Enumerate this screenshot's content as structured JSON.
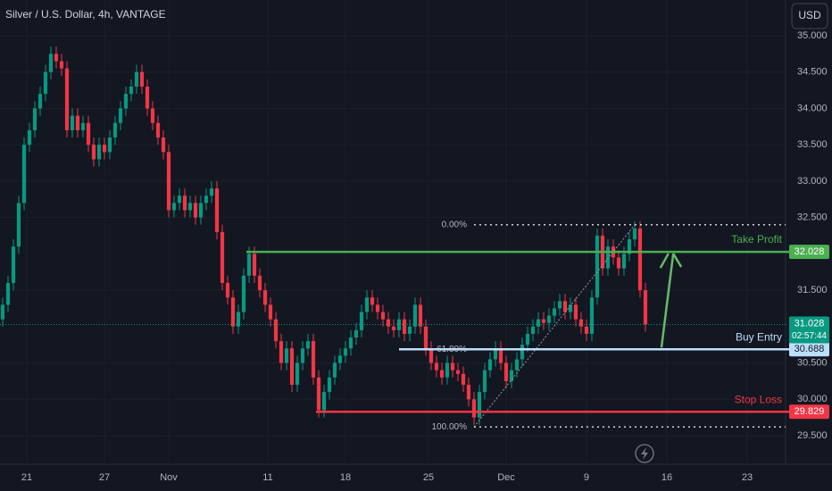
{
  "chart_data": {
    "type": "candlestick",
    "title": "Silver / U.S. Dollar, 4h, VANTAGE",
    "currency": "USD",
    "up_color": "#089981",
    "down_color": "#f23645",
    "open": [
      31.1,
      31.3,
      31.6,
      32.1,
      32.7,
      33.5,
      33.7,
      34.0,
      34.2,
      34.5,
      34.75,
      34.65,
      34.55,
      33.7,
      33.9,
      33.7,
      33.8,
      33.5,
      33.3,
      33.5,
      33.4,
      33.6,
      33.8,
      34.0,
      34.2,
      34.3,
      34.5,
      34.3,
      34.0,
      33.8,
      33.6,
      33.4,
      32.6,
      32.7,
      32.8,
      32.6,
      32.7,
      32.5,
      32.7,
      32.8,
      32.9,
      32.3,
      31.6,
      31.4,
      31.0,
      31.2,
      31.7,
      32.0,
      31.7,
      31.5,
      31.3,
      31.1,
      30.8,
      30.5,
      30.7,
      30.2,
      30.5,
      30.7,
      30.8,
      30.3,
      29.85,
      30.1,
      30.3,
      30.5,
      30.6,
      30.7,
      30.85,
      30.95,
      31.2,
      31.4,
      31.3,
      31.2,
      31.1,
      31.0,
      30.95,
      31.1,
      30.9,
      31.0,
      31.3,
      31.0,
      30.7,
      30.5,
      30.4,
      30.3,
      30.5,
      30.4,
      30.35,
      30.2,
      30.0,
      29.75,
      30.1,
      30.4,
      30.55,
      30.7,
      30.5,
      30.25,
      30.4,
      30.55,
      30.75,
      30.9,
      31.0,
      31.1,
      31.05,
      31.15,
      31.25,
      31.35,
      31.2,
      31.3,
      31.1,
      31.0,
      30.9,
      31.4,
      32.25,
      31.8,
      32.1,
      31.95,
      31.8,
      32.0,
      32.2,
      32.35,
      31.5
    ],
    "high": [
      31.4,
      31.7,
      32.2,
      32.8,
      33.6,
      33.8,
      34.1,
      34.3,
      34.6,
      34.85,
      34.85,
      34.75,
      34.65,
      34.0,
      34.0,
      33.9,
      33.9,
      33.6,
      33.6,
      33.6,
      33.7,
      33.9,
      34.1,
      34.3,
      34.4,
      34.6,
      34.6,
      34.4,
      34.1,
      33.9,
      33.7,
      33.5,
      32.8,
      32.9,
      32.9,
      32.8,
      32.8,
      32.8,
      32.9,
      33.0,
      33.0,
      32.4,
      31.7,
      31.5,
      31.3,
      31.8,
      32.1,
      32.1,
      31.8,
      31.6,
      31.4,
      31.2,
      30.9,
      30.8,
      30.8,
      30.6,
      30.8,
      30.9,
      30.9,
      30.4,
      30.2,
      30.4,
      30.6,
      30.7,
      30.8,
      30.95,
      31.05,
      31.3,
      31.5,
      31.5,
      31.4,
      31.3,
      31.2,
      31.1,
      31.2,
      31.2,
      31.1,
      31.4,
      31.4,
      31.1,
      30.8,
      30.6,
      30.5,
      30.6,
      30.6,
      30.5,
      30.45,
      30.3,
      30.1,
      30.2,
      30.5,
      30.65,
      30.8,
      30.8,
      30.6,
      30.5,
      30.65,
      30.85,
      31.0,
      31.1,
      31.2,
      31.2,
      31.25,
      31.35,
      31.45,
      31.45,
      31.4,
      31.4,
      31.2,
      31.1,
      31.5,
      32.35,
      32.35,
      32.2,
      32.2,
      32.05,
      32.1,
      32.3,
      32.45,
      32.45,
      31.6
    ],
    "low": [
      31.0,
      31.2,
      31.5,
      32.0,
      32.6,
      33.4,
      33.6,
      33.9,
      34.1,
      34.4,
      34.55,
      34.45,
      33.6,
      33.6,
      33.6,
      33.6,
      33.4,
      33.2,
      33.2,
      33.3,
      33.3,
      33.5,
      33.7,
      33.9,
      34.1,
      34.2,
      34.2,
      33.9,
      33.7,
      33.5,
      33.3,
      32.5,
      32.5,
      32.6,
      32.5,
      32.5,
      32.4,
      32.4,
      32.6,
      32.7,
      32.2,
      31.5,
      31.3,
      30.9,
      30.9,
      31.1,
      31.6,
      31.6,
      31.4,
      31.2,
      31.0,
      30.7,
      30.4,
      30.4,
      30.1,
      30.1,
      30.4,
      30.6,
      30.2,
      29.75,
      29.75,
      30.0,
      30.2,
      30.4,
      30.5,
      30.6,
      30.75,
      30.85,
      31.1,
      31.2,
      31.1,
      31.0,
      30.9,
      30.85,
      30.85,
      30.8,
      30.8,
      30.9,
      30.9,
      30.6,
      30.4,
      30.3,
      30.2,
      30.2,
      30.3,
      30.25,
      30.1,
      29.9,
      29.65,
      29.65,
      30.0,
      30.3,
      30.45,
      30.4,
      30.15,
      30.15,
      30.3,
      30.45,
      30.65,
      30.8,
      30.9,
      30.95,
      30.95,
      31.05,
      31.15,
      31.1,
      31.1,
      31.0,
      30.9,
      30.8,
      30.8,
      31.3,
      31.7,
      31.7,
      31.85,
      31.7,
      31.7,
      31.9,
      32.1,
      31.4,
      30.93
    ],
    "close": [
      31.3,
      31.6,
      32.1,
      32.7,
      33.5,
      33.7,
      34.0,
      34.2,
      34.5,
      34.75,
      34.65,
      34.55,
      33.7,
      33.9,
      33.7,
      33.8,
      33.5,
      33.3,
      33.5,
      33.4,
      33.6,
      33.8,
      34.0,
      34.2,
      34.3,
      34.5,
      34.3,
      34.0,
      33.8,
      33.6,
      33.4,
      32.6,
      32.7,
      32.8,
      32.6,
      32.7,
      32.5,
      32.7,
      32.8,
      32.9,
      32.3,
      31.6,
      31.4,
      31.0,
      31.2,
      31.7,
      32.0,
      31.7,
      31.5,
      31.3,
      31.1,
      30.8,
      30.5,
      30.7,
      30.2,
      30.5,
      30.7,
      30.8,
      30.3,
      29.85,
      30.1,
      30.3,
      30.5,
      30.6,
      30.7,
      30.85,
      30.95,
      31.2,
      31.4,
      31.3,
      31.2,
      31.1,
      31.0,
      30.95,
      31.1,
      30.9,
      31.0,
      31.3,
      31.0,
      30.7,
      30.5,
      30.4,
      30.3,
      30.5,
      30.4,
      30.35,
      30.2,
      30.0,
      29.75,
      30.1,
      30.4,
      30.55,
      30.7,
      30.5,
      30.25,
      30.4,
      30.55,
      30.75,
      30.9,
      31.0,
      31.1,
      31.05,
      31.15,
      31.25,
      31.35,
      31.2,
      31.3,
      31.1,
      31.0,
      30.9,
      31.4,
      32.25,
      31.8,
      32.1,
      31.95,
      31.8,
      32.0,
      32.2,
      32.35,
      31.5,
      31.03
    ],
    "xlim": [
      -0.5,
      146.17
    ],
    "ylim": [
      29.107,
      35.491
    ],
    "xticks": [
      {
        "value": 4.5,
        "label": "21"
      },
      {
        "value": 19,
        "label": "27"
      },
      {
        "value": 31,
        "label": "Nov"
      },
      {
        "value": 49.5,
        "label": "11"
      },
      {
        "value": 64,
        "label": "18"
      },
      {
        "value": 79.5,
        "label": "25"
      },
      {
        "value": 94,
        "label": "Dec"
      },
      {
        "value": 109,
        "label": "9"
      },
      {
        "value": 124,
        "label": "16"
      },
      {
        "value": 139,
        "label": "23"
      }
    ],
    "yticks": [
      {
        "value": 35,
        "label": "35.000"
      },
      {
        "value": 34.5,
        "label": "34.500"
      },
      {
        "value": 34,
        "label": "34.000"
      },
      {
        "value": 33.5,
        "label": "33.500"
      },
      {
        "value": 33,
        "label": "33.000"
      },
      {
        "value": 32.5,
        "label": "32.500"
      },
      {
        "value": 31.5,
        "label": "31.500"
      },
      {
        "value": 30.5,
        "label": "30.500"
      },
      {
        "value": 30,
        "label": "30.000"
      },
      {
        "value": 29.5,
        "label": "29.500"
      }
    ],
    "grid": true,
    "levels": [
      {
        "label": "Take Profit",
        "value": 32.028,
        "color": "#4caf50"
      },
      {
        "label": "Buy Entry",
        "value": 30.688,
        "color": "#bbdefb"
      },
      {
        "label": "Stop Loss",
        "value": 29.829,
        "color": "#f23645"
      }
    ],
    "fib_levels": [
      {
        "label": "0.00%",
        "value": 32.4
      },
      {
        "label": "61.80%",
        "value": 30.688
      },
      {
        "label": "100.00%",
        "value": 29.62
      }
    ],
    "last_price": 31.028,
    "last_color": "#089981",
    "countdown": "02:57:44"
  }
}
